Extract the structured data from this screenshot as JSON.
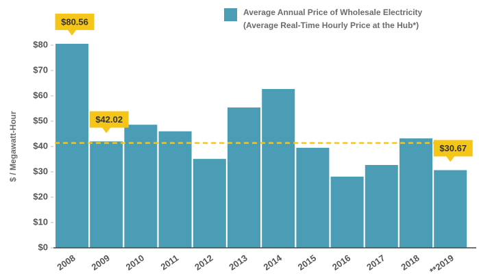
{
  "chart_data": {
    "type": "bar",
    "y_label": "$ / Megawatt-Hour",
    "categories": [
      "2008",
      "2009",
      "2010",
      "2011",
      "2012",
      "2013",
      "2014",
      "2015",
      "2016",
      "2017",
      "2018",
      "**2019"
    ],
    "series": [
      {
        "name": "Average Annual Price of Wholesale Electricity",
        "description": "(Average Real-Time Hourly Price at the Hub*)",
        "color": "#4a9db5",
        "values": [
          80.56,
          42.02,
          48.6,
          46.0,
          35.1,
          55.4,
          62.7,
          39.5,
          28.1,
          32.7,
          43.2,
          30.67
        ],
        "value_labels": [
          "$80.56",
          "$42.02",
          null,
          null,
          null,
          null,
          null,
          null,
          null,
          null,
          null,
          "$30.67"
        ]
      }
    ],
    "reference_line": {
      "value": 41.4,
      "color": "#f5c518"
    },
    "callout_color": "#f5c518",
    "ylim": [
      0,
      80
    ],
    "yticks": [
      {
        "value": 0,
        "label": "$0"
      },
      {
        "value": 10,
        "label": "$10"
      },
      {
        "value": 20,
        "label": "$20"
      },
      {
        "value": 30,
        "label": "$30"
      },
      {
        "value": 40,
        "label": "$40"
      },
      {
        "value": 50,
        "label": "$50"
      },
      {
        "value": 60,
        "label": "$60"
      },
      {
        "value": 70,
        "label": "$70"
      },
      {
        "value": 80,
        "label": "$80"
      }
    ],
    "grid": false
  }
}
